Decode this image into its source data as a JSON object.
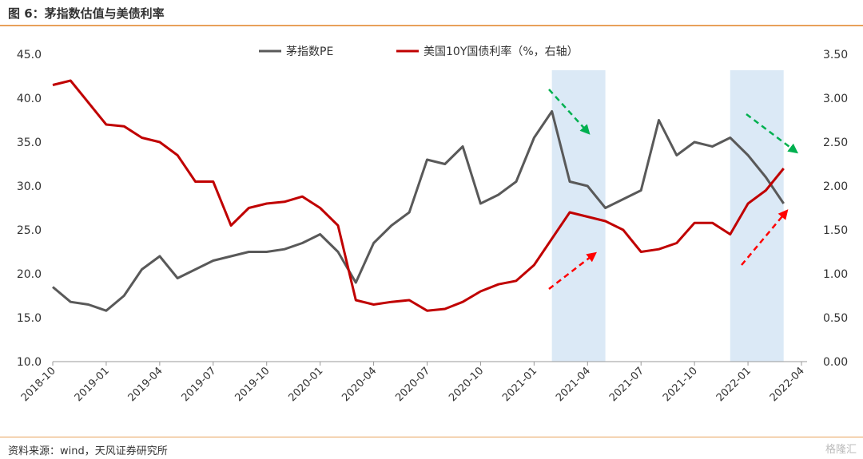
{
  "header": {
    "title": "图 6：茅指数估值与美债利率"
  },
  "footer": {
    "source": "资料来源：wind，天风证券研究所",
    "watermark": "格隆汇"
  },
  "colors": {
    "pe": "#595959",
    "rate": "#c00000",
    "highlight": "#dbe9f6",
    "green_arrow": "#00b050",
    "red_arrow": "#ff0000"
  },
  "chart_data": {
    "type": "line",
    "title": "",
    "xlabel": "",
    "ylabel": "",
    "y_left_ticks": [
      "10.0",
      "15.0",
      "20.0",
      "25.0",
      "30.0",
      "35.0",
      "40.0",
      "45.0"
    ],
    "y_right_ticks": [
      "0.00",
      "0.50",
      "1.00",
      "1.50",
      "2.00",
      "2.50",
      "3.00",
      "3.50"
    ],
    "ylim_left": [
      10,
      45
    ],
    "ylim_right": [
      0,
      3.5
    ],
    "x_ticks": [
      "2018-10",
      "2019-01",
      "2019-04",
      "2019-07",
      "2019-10",
      "2020-01",
      "2020-04",
      "2020-07",
      "2020-10",
      "2021-01",
      "2021-04",
      "2021-07",
      "2021-10",
      "2022-01",
      "2022-04"
    ],
    "x_range": [
      "2018-10",
      "2022-04"
    ],
    "legend_position": "top-center",
    "highlights": [
      {
        "start": "2021-02",
        "end": "2021-05"
      },
      {
        "start": "2021-12",
        "end": "2022-03"
      }
    ],
    "series": [
      {
        "name": "茅指数PE",
        "axis": "left",
        "x": [
          "2018-10",
          "2018-11",
          "2018-12",
          "2019-01",
          "2019-02",
          "2019-03",
          "2019-04",
          "2019-05",
          "2019-06",
          "2019-07",
          "2019-08",
          "2019-09",
          "2019-10",
          "2019-11",
          "2019-12",
          "2020-01",
          "2020-02",
          "2020-03",
          "2020-04",
          "2020-05",
          "2020-06",
          "2020-07",
          "2020-08",
          "2020-09",
          "2020-10",
          "2020-11",
          "2020-12",
          "2021-01",
          "2021-02",
          "2021-03",
          "2021-04",
          "2021-05",
          "2021-06",
          "2021-07",
          "2021-08",
          "2021-09",
          "2021-10",
          "2021-11",
          "2021-12",
          "2022-01",
          "2022-02",
          "2022-03"
        ],
        "values": [
          18.5,
          16.8,
          16.5,
          15.8,
          17.5,
          20.5,
          22.0,
          19.5,
          20.5,
          21.5,
          22.0,
          22.5,
          22.5,
          22.8,
          23.5,
          24.5,
          22.5,
          19.0,
          23.5,
          25.5,
          27.0,
          33.0,
          32.5,
          34.5,
          28.0,
          29.0,
          30.5,
          35.5,
          38.5,
          30.5,
          30.0,
          27.5,
          28.5,
          29.5,
          37.5,
          33.5,
          35.0,
          34.5,
          35.5,
          33.5,
          31.0,
          28.0
        ]
      },
      {
        "name": "美国10Y国债利率（%，右轴）",
        "axis": "right",
        "x": [
          "2018-10",
          "2018-11",
          "2018-12",
          "2019-01",
          "2019-02",
          "2019-03",
          "2019-04",
          "2019-05",
          "2019-06",
          "2019-07",
          "2019-08",
          "2019-09",
          "2019-10",
          "2019-11",
          "2019-12",
          "2020-01",
          "2020-02",
          "2020-03",
          "2020-04",
          "2020-05",
          "2020-06",
          "2020-07",
          "2020-08",
          "2020-09",
          "2020-10",
          "2020-11",
          "2020-12",
          "2021-01",
          "2021-02",
          "2021-03",
          "2021-04",
          "2021-05",
          "2021-06",
          "2021-07",
          "2021-08",
          "2021-09",
          "2021-10",
          "2021-11",
          "2021-12",
          "2022-01",
          "2022-02",
          "2022-03"
        ],
        "values": [
          3.15,
          3.2,
          2.95,
          2.7,
          2.68,
          2.55,
          2.5,
          2.35,
          2.05,
          2.05,
          1.55,
          1.75,
          1.8,
          1.82,
          1.88,
          1.75,
          1.55,
          0.7,
          0.65,
          0.68,
          0.7,
          0.58,
          0.6,
          0.68,
          0.8,
          0.88,
          0.92,
          1.1,
          1.4,
          1.7,
          1.65,
          1.6,
          1.5,
          1.25,
          1.28,
          1.35,
          1.58,
          1.58,
          1.45,
          1.8,
          1.95,
          2.2
        ]
      }
    ]
  }
}
